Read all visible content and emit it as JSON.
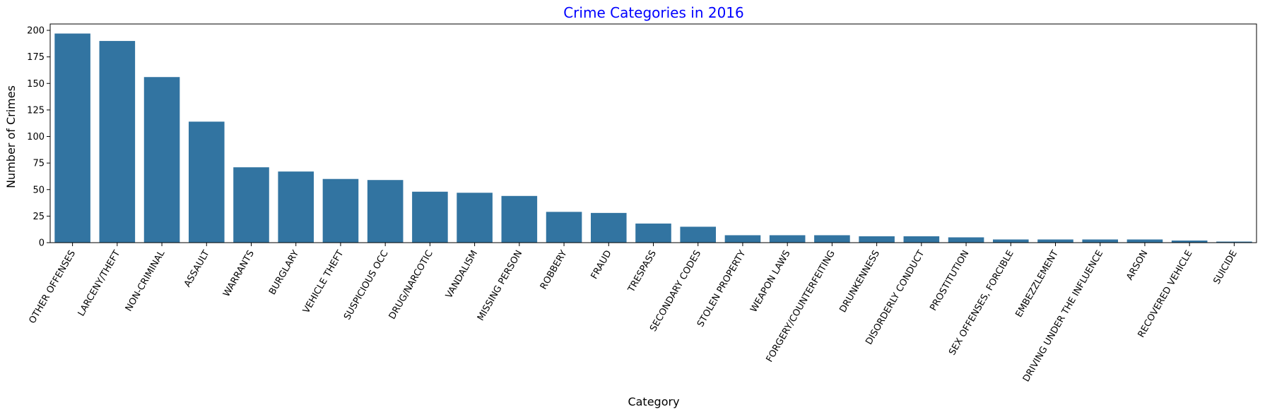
{
  "chart_data": {
    "type": "bar",
    "title": "Crime Categories in 2016",
    "xlabel": "Category",
    "ylabel": "Number of Crimes",
    "ylim": [
      0,
      206
    ],
    "yticks": [
      0,
      25,
      50,
      75,
      100,
      125,
      150,
      175,
      200
    ],
    "grid": false,
    "legend": "none",
    "categories": [
      "OTHER OFFENSES",
      "LARCENY/THEFT",
      "NON-CRIMINAL",
      "ASSAULT",
      "WARRANTS",
      "BURGLARY",
      "VEHICLE THEFT",
      "SUSPICIOUS OCC",
      "DRUG/NARCOTIC",
      "VANDALISM",
      "MISSING PERSON",
      "ROBBERY",
      "FRAUD",
      "TRESPASS",
      "SECONDARY CODES",
      "STOLEN PROPERTY",
      "WEAPON LAWS",
      "FORGERY/COUNTERFEITING",
      "DRUNKENNESS",
      "DISORDERLY CONDUCT",
      "PROSTITUTION",
      "SEX OFFENSES, FORCIBLE",
      "EMBEZZLEMENT",
      "DRIVING UNDER THE INFLUENCE",
      "ARSON",
      "RECOVERED VEHICLE",
      "SUICIDE"
    ],
    "values": [
      197,
      190,
      156,
      114,
      71,
      67,
      60,
      59,
      48,
      47,
      44,
      29,
      28,
      18,
      15,
      7,
      7,
      7,
      6,
      6,
      5,
      3,
      3,
      3,
      3,
      2,
      1
    ]
  },
  "colors": {
    "bar": "#3274a1",
    "title": "#0000ff",
    "text": "#000000"
  }
}
